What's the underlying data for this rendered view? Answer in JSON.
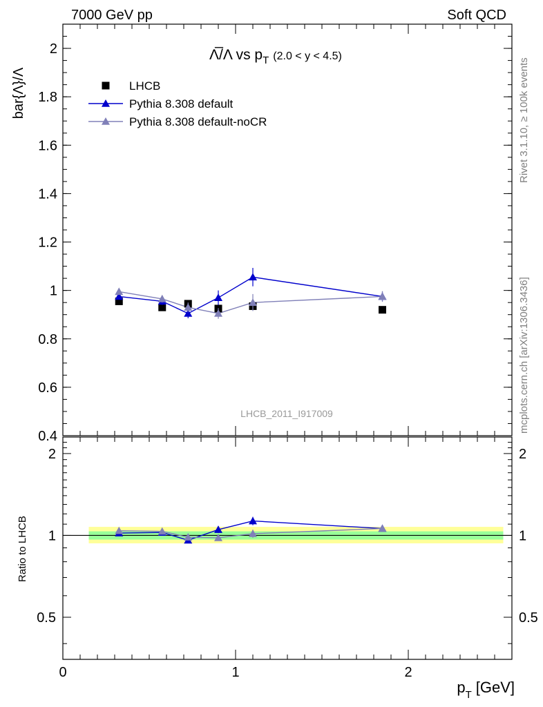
{
  "header": {
    "left": "7000 GeV pp",
    "right": "Soft QCD"
  },
  "side": {
    "rivet": "Rivet 3.1.10, ≥ 100k events",
    "mcplots": "mcplots.cern.ch [arXiv:1306.3436]"
  },
  "chart_data": {
    "type": "scatter",
    "title_main": "Λ̅/Λ vs p",
    "title_sub": "T",
    "title_range": "(2.0 < y < 4.5)",
    "ylabel": "bar{Λ}/Λ",
    "ratio_ylabel": "Ratio to LHCB",
    "xlabel": "p",
    "xlabel_sub": "T",
    "xlabel_unit": "[GeV]",
    "watermark": "LHCB_2011_I917009",
    "xlim": [
      0,
      2.6
    ],
    "ylim": [
      0.4,
      2.1
    ],
    "ratio_ylim": [
      0.35,
      2.3
    ],
    "x_ticks": [
      "0",
      "1",
      "2"
    ],
    "y_ticks": [
      "0.4",
      "0.6",
      "0.8",
      "1",
      "1.2",
      "1.4",
      "1.6",
      "1.8",
      "2"
    ],
    "ratio_y_ticks": [
      "0.5",
      "1",
      "2"
    ],
    "legend_position": "top-left",
    "series": [
      {
        "name": "LHCB",
        "marker": "square",
        "color": "#000000",
        "x": [
          0.325,
          0.575,
          0.725,
          0.9,
          1.1,
          1.85
        ],
        "y": [
          0.955,
          0.93,
          0.945,
          0.925,
          0.935,
          0.92
        ],
        "err": [
          0.01,
          0.01,
          0.01,
          0.01,
          0.01,
          0.01
        ]
      },
      {
        "name": "Pythia 8.308 default",
        "marker": "triangle",
        "color": "#0000cc",
        "x": [
          0.325,
          0.575,
          0.725,
          0.9,
          1.1,
          1.85
        ],
        "y": [
          0.975,
          0.955,
          0.905,
          0.97,
          1.055,
          0.975
        ],
        "err": [
          0.012,
          0.015,
          0.02,
          0.03,
          0.038,
          0.02
        ]
      },
      {
        "name": "Pythia 8.308 default-noCR",
        "marker": "triangle",
        "color": "#8080b8",
        "x": [
          0.325,
          0.575,
          0.725,
          0.9,
          1.1,
          1.85
        ],
        "y": [
          0.995,
          0.965,
          0.93,
          0.905,
          0.95,
          0.975
        ],
        "err": [
          0.012,
          0.015,
          0.02,
          0.022,
          0.035,
          0.022
        ]
      }
    ],
    "ratio_series": [
      {
        "name": "Pythia 8.308 default",
        "color": "#0000cc",
        "x": [
          0.325,
          0.575,
          0.725,
          0.9,
          1.1,
          1.85
        ],
        "y": [
          1.02,
          1.025,
          0.96,
          1.05,
          1.13,
          1.06
        ],
        "err": [
          0.015,
          0.015,
          0.02,
          0.03,
          0.04,
          0.025
        ]
      },
      {
        "name": "Pythia 8.308 default-noCR",
        "color": "#8080b8",
        "x": [
          0.325,
          0.575,
          0.725,
          0.9,
          1.1,
          1.85
        ],
        "y": [
          1.04,
          1.035,
          0.985,
          0.98,
          1.015,
          1.06
        ],
        "err": [
          0.015,
          0.015,
          0.02,
          0.02,
          0.035,
          0.025
        ]
      }
    ],
    "bands": {
      "x_range": [
        0.15,
        2.55
      ],
      "yellow": [
        0.935,
        1.075
      ],
      "green": [
        0.965,
        1.035
      ],
      "yellow_color": "#ffff99",
      "green_color": "#99ff99"
    }
  }
}
